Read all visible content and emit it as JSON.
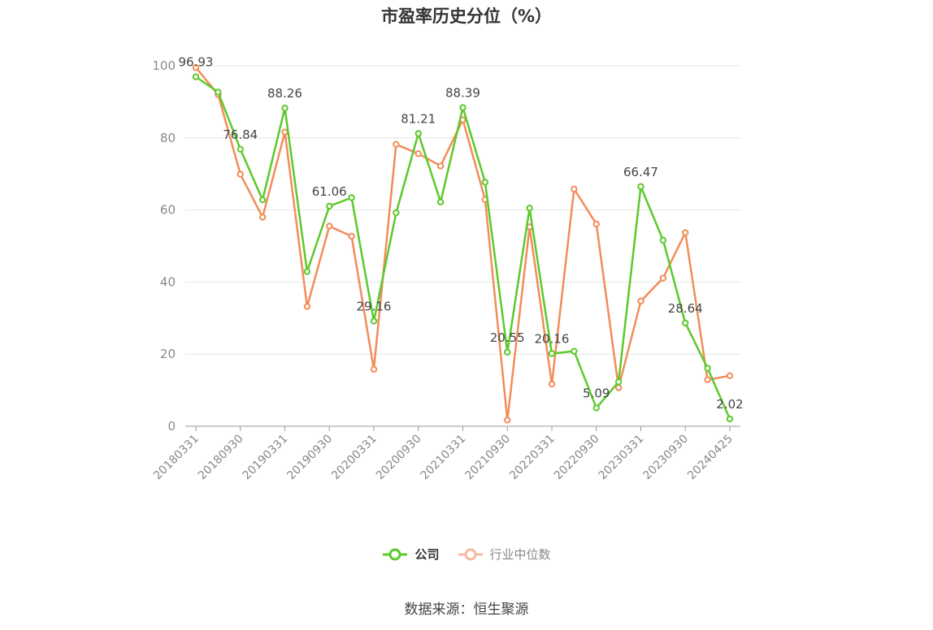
{
  "title": "市盈率历史分位（%）",
  "source": "数据来源：恒生聚源",
  "legend": {
    "company": "公司",
    "industry": "行业中位数"
  },
  "colors": {
    "company": "#5cc92a",
    "industry": "#f28c5a",
    "industry_legend": "#f8b8a0",
    "grid": "#e6e6e6",
    "axis": "#999999",
    "tick_text": "#888888",
    "label_text": "#444444"
  },
  "chart_data": {
    "type": "line",
    "y_ticks": [
      0,
      20,
      40,
      60,
      80,
      100
    ],
    "ylim": [
      0,
      100
    ],
    "x_tick_labels": [
      "20180331",
      "20180930",
      "20190331",
      "20190930",
      "20200331",
      "20200930",
      "20210331",
      "20210930",
      "20220331",
      "20220930",
      "20230331",
      "20230930",
      "20240425"
    ],
    "x": [
      "20180331",
      "20180630",
      "20180930",
      "20181231",
      "20190331",
      "20190630",
      "20190930",
      "20191231",
      "20200331",
      "20200630",
      "20200930",
      "20201231",
      "20210331",
      "20210630",
      "20210930",
      "20211231",
      "20220331",
      "20220630",
      "20220930",
      "20221231",
      "20230331",
      "20230630",
      "20230930",
      "20231231",
      "20240425"
    ],
    "series": [
      {
        "name": "公司",
        "values": [
          96.93,
          92.7,
          76.84,
          62.8,
          88.26,
          42.9,
          61.06,
          63.4,
          29.16,
          59.2,
          81.21,
          62.2,
          88.39,
          67.7,
          20.55,
          60.5,
          20.16,
          20.8,
          5.09,
          12.3,
          66.47,
          51.6,
          28.64,
          16.1,
          2.02
        ]
      },
      {
        "name": "行业中位数",
        "values": [
          99.5,
          92.0,
          69.9,
          58.0,
          81.6,
          33.2,
          55.5,
          52.7,
          15.8,
          78.2,
          75.6,
          72.2,
          85.0,
          62.9,
          1.7,
          55.3,
          11.7,
          65.8,
          56.1,
          10.7,
          34.7,
          41.1,
          53.7,
          12.9,
          14.0
        ]
      }
    ],
    "data_labels": [
      {
        "index": 0,
        "text": "96.93"
      },
      {
        "index": 2,
        "text": "76.84"
      },
      {
        "index": 4,
        "text": "88.26"
      },
      {
        "index": 6,
        "text": "61.06"
      },
      {
        "index": 8,
        "text": "29.16"
      },
      {
        "index": 10,
        "text": "81.21"
      },
      {
        "index": 12,
        "text": "88.39"
      },
      {
        "index": 14,
        "text": "20.55"
      },
      {
        "index": 16,
        "text": "20.16"
      },
      {
        "index": 18,
        "text": "5.09"
      },
      {
        "index": 20,
        "text": "66.47"
      },
      {
        "index": 22,
        "text": "28.64"
      },
      {
        "index": 24,
        "text": "2.02"
      }
    ]
  }
}
